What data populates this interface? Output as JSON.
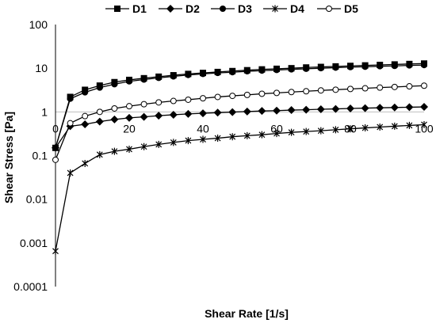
{
  "chart_data": {
    "type": "line",
    "title": "",
    "xlabel": "Shear Rate [1/s]",
    "ylabel": "Shear Stress [Pa]",
    "xlim": [
      0,
      100
    ],
    "ylim": [
      0.0001,
      100
    ],
    "yscale": "log",
    "x_ticks": [
      "0",
      "20",
      "40",
      "60",
      "80",
      "100"
    ],
    "y_ticks": [
      "0.0001",
      "0.001",
      "0.01",
      "0.1",
      "1",
      "10",
      "100"
    ],
    "grid": "horizontal line at y = 1",
    "legend_position": "top",
    "x": [
      0,
      4,
      8,
      12,
      16,
      20,
      24,
      28,
      32,
      36,
      40,
      44,
      48,
      52,
      56,
      60,
      64,
      68,
      72,
      76,
      80,
      84,
      88,
      92,
      96,
      100
    ],
    "series": [
      {
        "name": "D1",
        "marker": "square",
        "values": [
          0.15,
          2.2,
          3.2,
          4.0,
          4.8,
          5.4,
          5.9,
          6.4,
          6.9,
          7.4,
          7.8,
          8.2,
          8.6,
          9.0,
          9.4,
          9.7,
          10.0,
          10.4,
          10.7,
          11.0,
          11.3,
          11.6,
          11.9,
          12.2,
          12.5,
          12.8
        ]
      },
      {
        "name": "D2",
        "marker": "diamond",
        "values": [
          0.15,
          0.47,
          0.52,
          0.6,
          0.67,
          0.73,
          0.77,
          0.82,
          0.86,
          0.9,
          0.93,
          0.96,
          0.99,
          1.02,
          1.05,
          1.07,
          1.1,
          1.12,
          1.15,
          1.17,
          1.2,
          1.22,
          1.24,
          1.26,
          1.28,
          1.3
        ]
      },
      {
        "name": "D3",
        "marker": "circle-filled",
        "values": [
          0.15,
          2.0,
          2.8,
          3.6,
          4.3,
          5.0,
          5.5,
          6.0,
          6.5,
          7.0,
          7.4,
          7.8,
          8.1,
          8.5,
          8.8,
          9.1,
          9.4,
          9.7,
          10.0,
          10.3,
          10.6,
          10.8,
          11.1,
          11.3,
          11.6,
          11.8
        ]
      },
      {
        "name": "D4",
        "marker": "star",
        "values": [
          0.00065,
          0.04,
          0.066,
          0.105,
          0.125,
          0.14,
          0.16,
          0.18,
          0.2,
          0.22,
          0.235,
          0.25,
          0.27,
          0.285,
          0.3,
          0.32,
          0.34,
          0.355,
          0.37,
          0.39,
          0.41,
          0.43,
          0.45,
          0.47,
          0.49,
          0.51
        ]
      },
      {
        "name": "D5",
        "marker": "circle-open",
        "values": [
          0.08,
          0.55,
          0.8,
          1.0,
          1.2,
          1.35,
          1.5,
          1.65,
          1.78,
          1.9,
          2.05,
          2.2,
          2.33,
          2.45,
          2.6,
          2.72,
          2.85,
          2.97,
          3.1,
          3.22,
          3.35,
          3.47,
          3.6,
          3.72,
          3.85,
          3.98
        ]
      }
    ]
  }
}
